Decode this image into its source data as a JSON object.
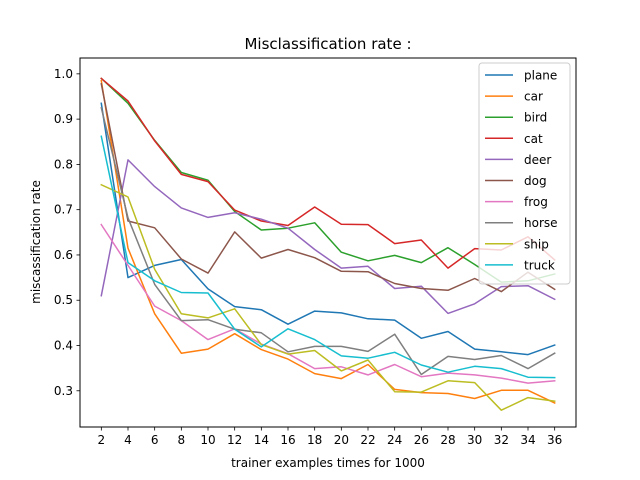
{
  "chart_data": {
    "type": "line",
    "title": "Misclassification rate :",
    "xlabel": "trainer examples times for 1000",
    "ylabel": "miscassification rate",
    "x": [
      2,
      4,
      6,
      8,
      10,
      12,
      14,
      16,
      18,
      20,
      22,
      24,
      26,
      28,
      30,
      32,
      34,
      36
    ],
    "x_ticks": [
      "2",
      "4",
      "6",
      "8",
      "10",
      "12",
      "14",
      "16",
      "18",
      "20",
      "22",
      "24",
      "26",
      "28",
      "30",
      "32",
      "34",
      "36"
    ],
    "y_ticks": [
      "0.3",
      "0.4",
      "0.5",
      "0.6",
      "0.7",
      "0.8",
      "0.9",
      "1.0"
    ],
    "xlim": [
      0.4,
      37.6
    ],
    "ylim": [
      0.22,
      1.035
    ],
    "grid": false,
    "legend_position": "top-right",
    "series": [
      {
        "name": "plane",
        "color": "#1f77b4",
        "values": [
          0.935,
          0.55,
          0.577,
          0.59,
          0.525,
          0.486,
          0.479,
          0.447,
          0.476,
          0.472,
          0.459,
          0.456,
          0.416,
          0.431,
          0.392,
          0.386,
          0.38,
          0.401
        ]
      },
      {
        "name": "car",
        "color": "#ff7f0e",
        "values": [
          0.985,
          0.615,
          0.47,
          0.383,
          0.392,
          0.426,
          0.391,
          0.37,
          0.338,
          0.327,
          0.358,
          0.303,
          0.296,
          0.294,
          0.283,
          0.301,
          0.301,
          0.273
        ]
      },
      {
        "name": "bird",
        "color": "#2ca02c",
        "values": [
          0.99,
          0.935,
          0.853,
          0.782,
          0.765,
          0.696,
          0.655,
          0.659,
          0.671,
          0.606,
          0.587,
          0.599,
          0.583,
          0.616,
          0.579,
          0.54,
          0.543,
          0.558
        ]
      },
      {
        "name": "cat",
        "color": "#d62728",
        "values": [
          0.99,
          0.94,
          0.852,
          0.778,
          0.762,
          0.699,
          0.675,
          0.665,
          0.706,
          0.668,
          0.667,
          0.625,
          0.633,
          0.571,
          0.614,
          0.611,
          0.64,
          0.589
        ]
      },
      {
        "name": "deer",
        "color": "#9467bd",
        "values": [
          0.51,
          0.81,
          0.751,
          0.704,
          0.683,
          0.693,
          0.679,
          0.659,
          0.612,
          0.571,
          0.575,
          0.526,
          0.531,
          0.471,
          0.492,
          0.53,
          0.532,
          0.502
        ]
      },
      {
        "name": "dog",
        "color": "#8c564b",
        "values": [
          0.978,
          0.675,
          0.66,
          0.591,
          0.56,
          0.651,
          0.593,
          0.612,
          0.594,
          0.564,
          0.563,
          0.537,
          0.526,
          0.522,
          0.548,
          0.519,
          0.562,
          0.524
        ]
      },
      {
        "name": "frog",
        "color": "#e377c2",
        "values": [
          0.667,
          0.577,
          0.487,
          0.455,
          0.413,
          0.437,
          0.403,
          0.382,
          0.349,
          0.353,
          0.335,
          0.358,
          0.331,
          0.339,
          0.335,
          0.328,
          0.317,
          0.322
        ]
      },
      {
        "name": "horse",
        "color": "#7f7f7f",
        "values": [
          0.925,
          0.682,
          0.535,
          0.455,
          0.457,
          0.436,
          0.428,
          0.386,
          0.398,
          0.398,
          0.387,
          0.425,
          0.336,
          0.376,
          0.369,
          0.378,
          0.349,
          0.383
        ]
      },
      {
        "name": "ship",
        "color": "#bcbd22",
        "values": [
          0.755,
          0.728,
          0.568,
          0.47,
          0.461,
          0.481,
          0.402,
          0.381,
          0.389,
          0.344,
          0.368,
          0.298,
          0.297,
          0.322,
          0.318,
          0.257,
          0.285,
          0.277
        ]
      },
      {
        "name": "truck",
        "color": "#17becf",
        "values": [
          0.862,
          0.583,
          0.543,
          0.517,
          0.516,
          0.436,
          0.397,
          0.437,
          0.413,
          0.377,
          0.372,
          0.385,
          0.357,
          0.341,
          0.354,
          0.349,
          0.33,
          0.329
        ]
      }
    ]
  }
}
